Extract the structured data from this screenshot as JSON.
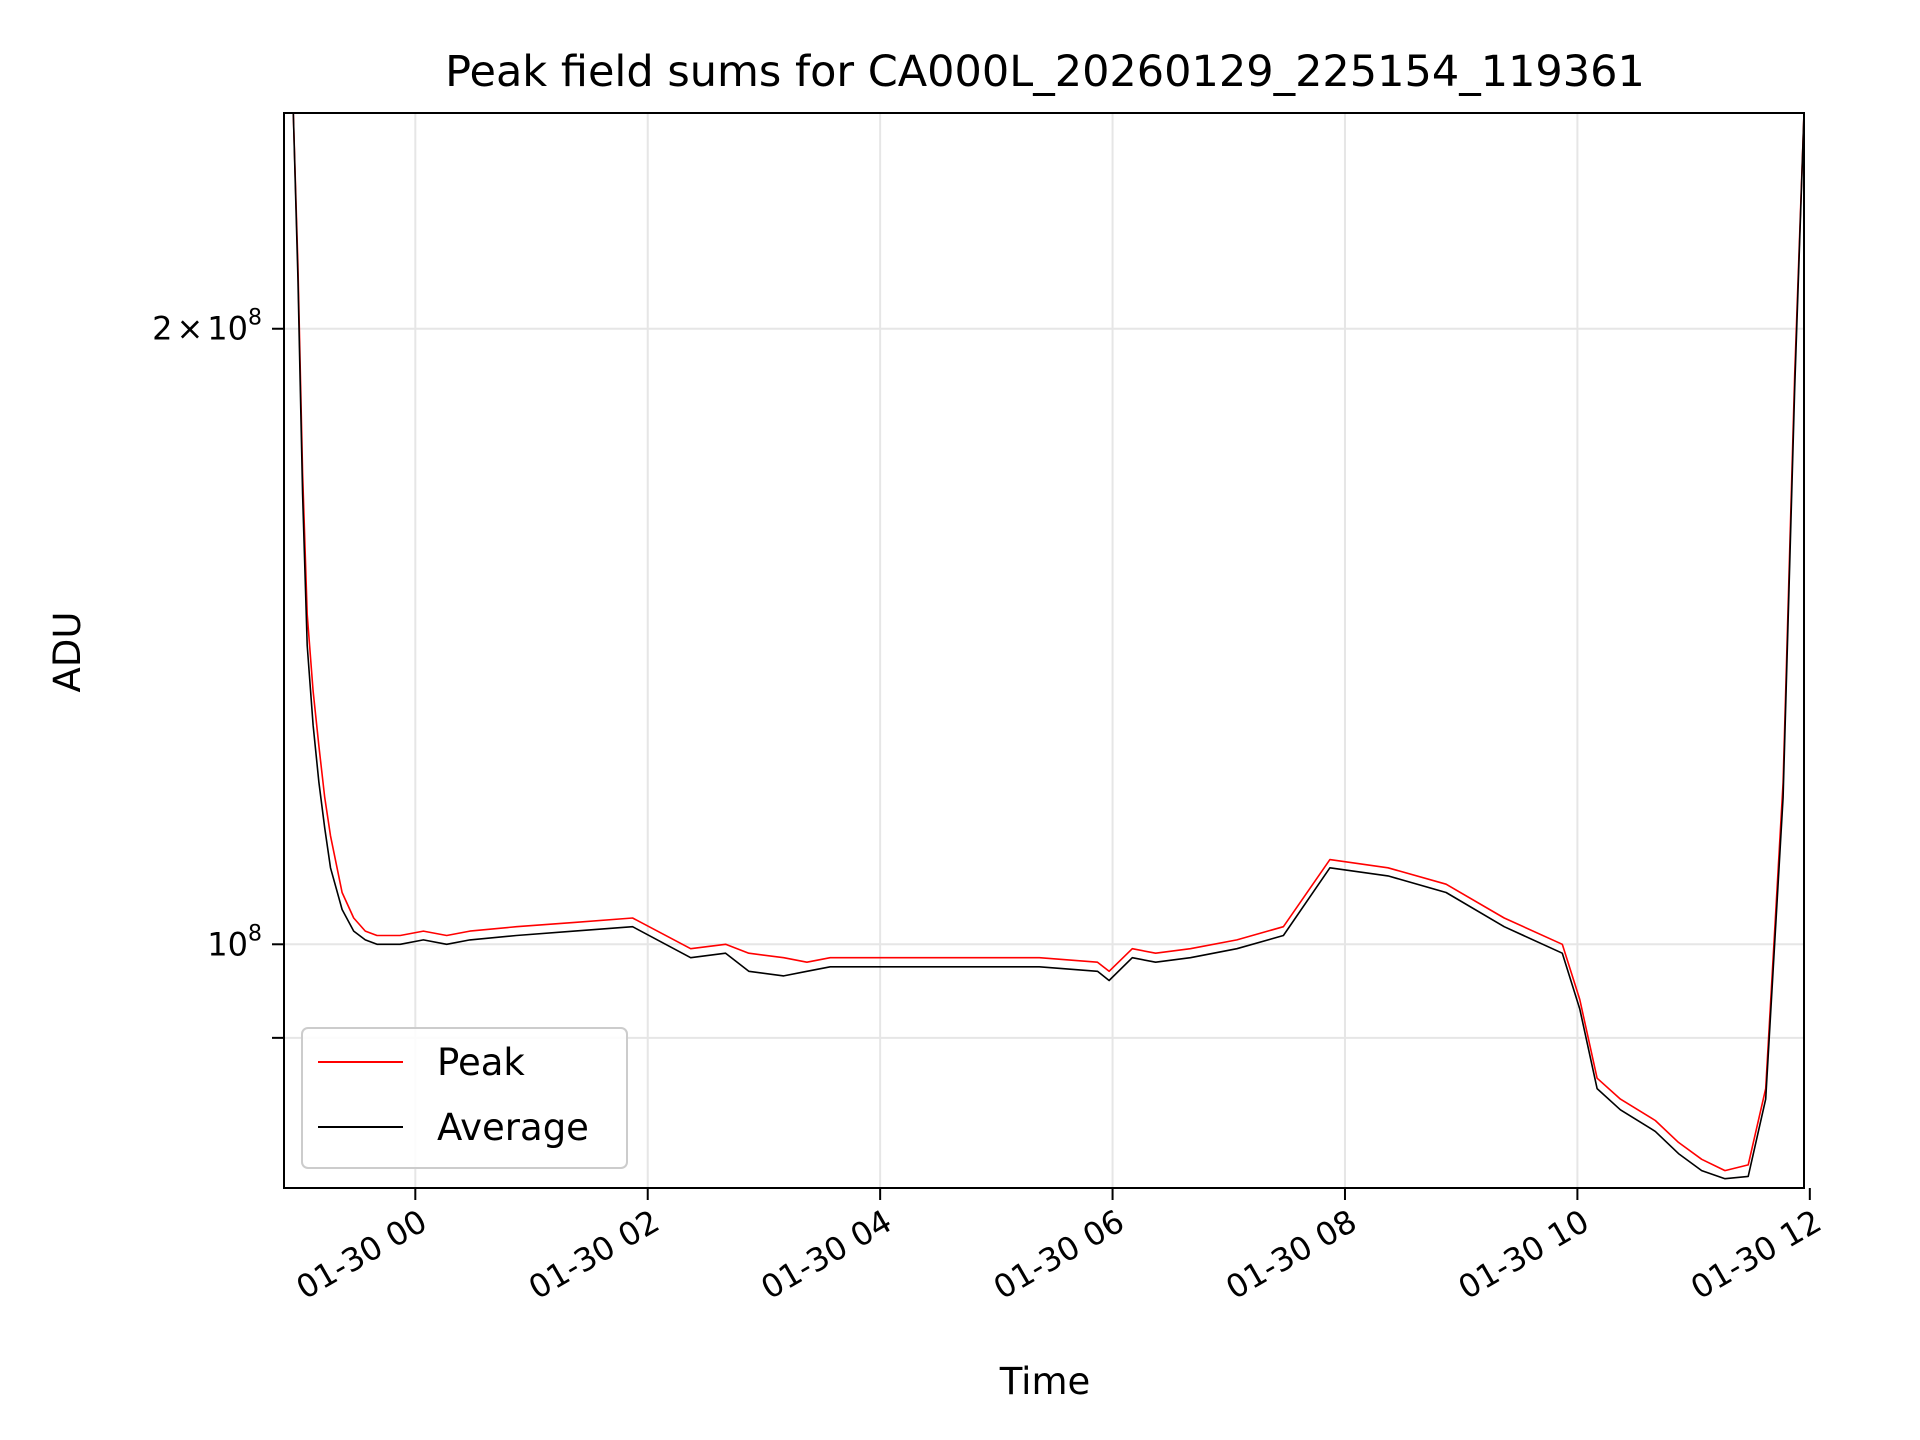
{
  "chart_data": {
    "type": "line",
    "title": "Peak field sums for CA000L_20260129_225154_119361",
    "xlabel": "Time",
    "ylabel": "ADU",
    "x_unit": "hours since 01-29 22:52 (plot start)",
    "xlim": [
      0,
      13.08
    ],
    "y_scale": "log",
    "ylim": [
      76000000,
      255000000
    ],
    "grid": true,
    "x_ticks": [
      {
        "value": 1.13,
        "label": "01-30 00"
      },
      {
        "value": 3.13,
        "label": "01-30 02"
      },
      {
        "value": 5.13,
        "label": "01-30 04"
      },
      {
        "value": 7.13,
        "label": "01-30 06"
      },
      {
        "value": 9.13,
        "label": "01-30 08"
      },
      {
        "value": 11.13,
        "label": "01-30 10"
      },
      {
        "value": 13.13,
        "label": "01-30 12"
      }
    ],
    "y_ticks": [
      {
        "value": 200000000,
        "mant": "2",
        "op": "×",
        "base": "10",
        "exp": "8"
      },
      {
        "value": 100000000,
        "mant": "",
        "op": "",
        "base": "10",
        "exp": "8"
      },
      {
        "value": 90000000,
        "mant": "",
        "op": "",
        "base": "",
        "exp": ""
      }
    ],
    "legend": {
      "position": "lower-left",
      "entries": [
        "Peak",
        "Average"
      ]
    },
    "series": [
      {
        "name": "Peak",
        "color": "#ff0000",
        "x": [
          0.08,
          0.12,
          0.16,
          0.2,
          0.25,
          0.3,
          0.35,
          0.4,
          0.5,
          0.6,
          0.7,
          0.8,
          0.9,
          1.0,
          1.2,
          1.4,
          1.6,
          2.0,
          2.5,
          3.0,
          3.5,
          3.8,
          4.0,
          4.3,
          4.5,
          4.7,
          5.0,
          5.5,
          6.0,
          6.5,
          7.0,
          7.1,
          7.3,
          7.5,
          7.8,
          8.2,
          8.6,
          9.0,
          9.5,
          10.0,
          10.5,
          11.0,
          11.15,
          11.3,
          11.5,
          11.8,
          12.0,
          12.2,
          12.4,
          12.6,
          12.75,
          12.9,
          13.0,
          13.08
        ],
        "y": [
          255000000,
          215000000,
          170000000,
          145000000,
          133000000,
          125000000,
          118000000,
          113000000,
          106000000,
          103000000,
          101500000,
          101000000,
          101000000,
          101000000,
          101500000,
          101000000,
          101500000,
          102000000,
          102500000,
          103000000,
          99500000,
          100000000,
          99000000,
          98500000,
          98000000,
          98500000,
          98500000,
          98500000,
          98500000,
          98500000,
          98000000,
          97000000,
          99500000,
          99000000,
          99500000,
          100500000,
          102000000,
          110000000,
          109000000,
          107000000,
          103000000,
          100000000,
          94000000,
          86000000,
          84000000,
          82000000,
          80000000,
          78500000,
          77500000,
          78000000,
          85000000,
          120000000,
          190000000,
          255000000
        ]
      },
      {
        "name": "Average",
        "color": "#000000",
        "x": [
          0.08,
          0.12,
          0.16,
          0.2,
          0.25,
          0.3,
          0.35,
          0.4,
          0.5,
          0.6,
          0.7,
          0.8,
          0.9,
          1.0,
          1.2,
          1.4,
          1.6,
          2.0,
          2.5,
          3.0,
          3.5,
          3.8,
          4.0,
          4.3,
          4.5,
          4.7,
          5.0,
          5.5,
          6.0,
          6.5,
          7.0,
          7.1,
          7.3,
          7.5,
          7.8,
          8.2,
          8.6,
          9.0,
          9.5,
          10.0,
          10.5,
          11.0,
          11.15,
          11.3,
          11.5,
          11.8,
          12.0,
          12.2,
          12.4,
          12.6,
          12.75,
          12.9,
          13.0,
          13.08
        ],
        "y": [
          255000000,
          212000000,
          166000000,
          140000000,
          128000000,
          120000000,
          114000000,
          109000000,
          104000000,
          101500000,
          100500000,
          100000000,
          100000000,
          100000000,
          100500000,
          100000000,
          100500000,
          101000000,
          101500000,
          102000000,
          98500000,
          99000000,
          97000000,
          96500000,
          97000000,
          97500000,
          97500000,
          97500000,
          97500000,
          97500000,
          97000000,
          96000000,
          98500000,
          98000000,
          98500000,
          99500000,
          101000000,
          109000000,
          108000000,
          106000000,
          102000000,
          99000000,
          93000000,
          85000000,
          83000000,
          81000000,
          79000000,
          77500000,
          76800000,
          77000000,
          84000000,
          118000000,
          187000000,
          255000000
        ]
      }
    ]
  }
}
